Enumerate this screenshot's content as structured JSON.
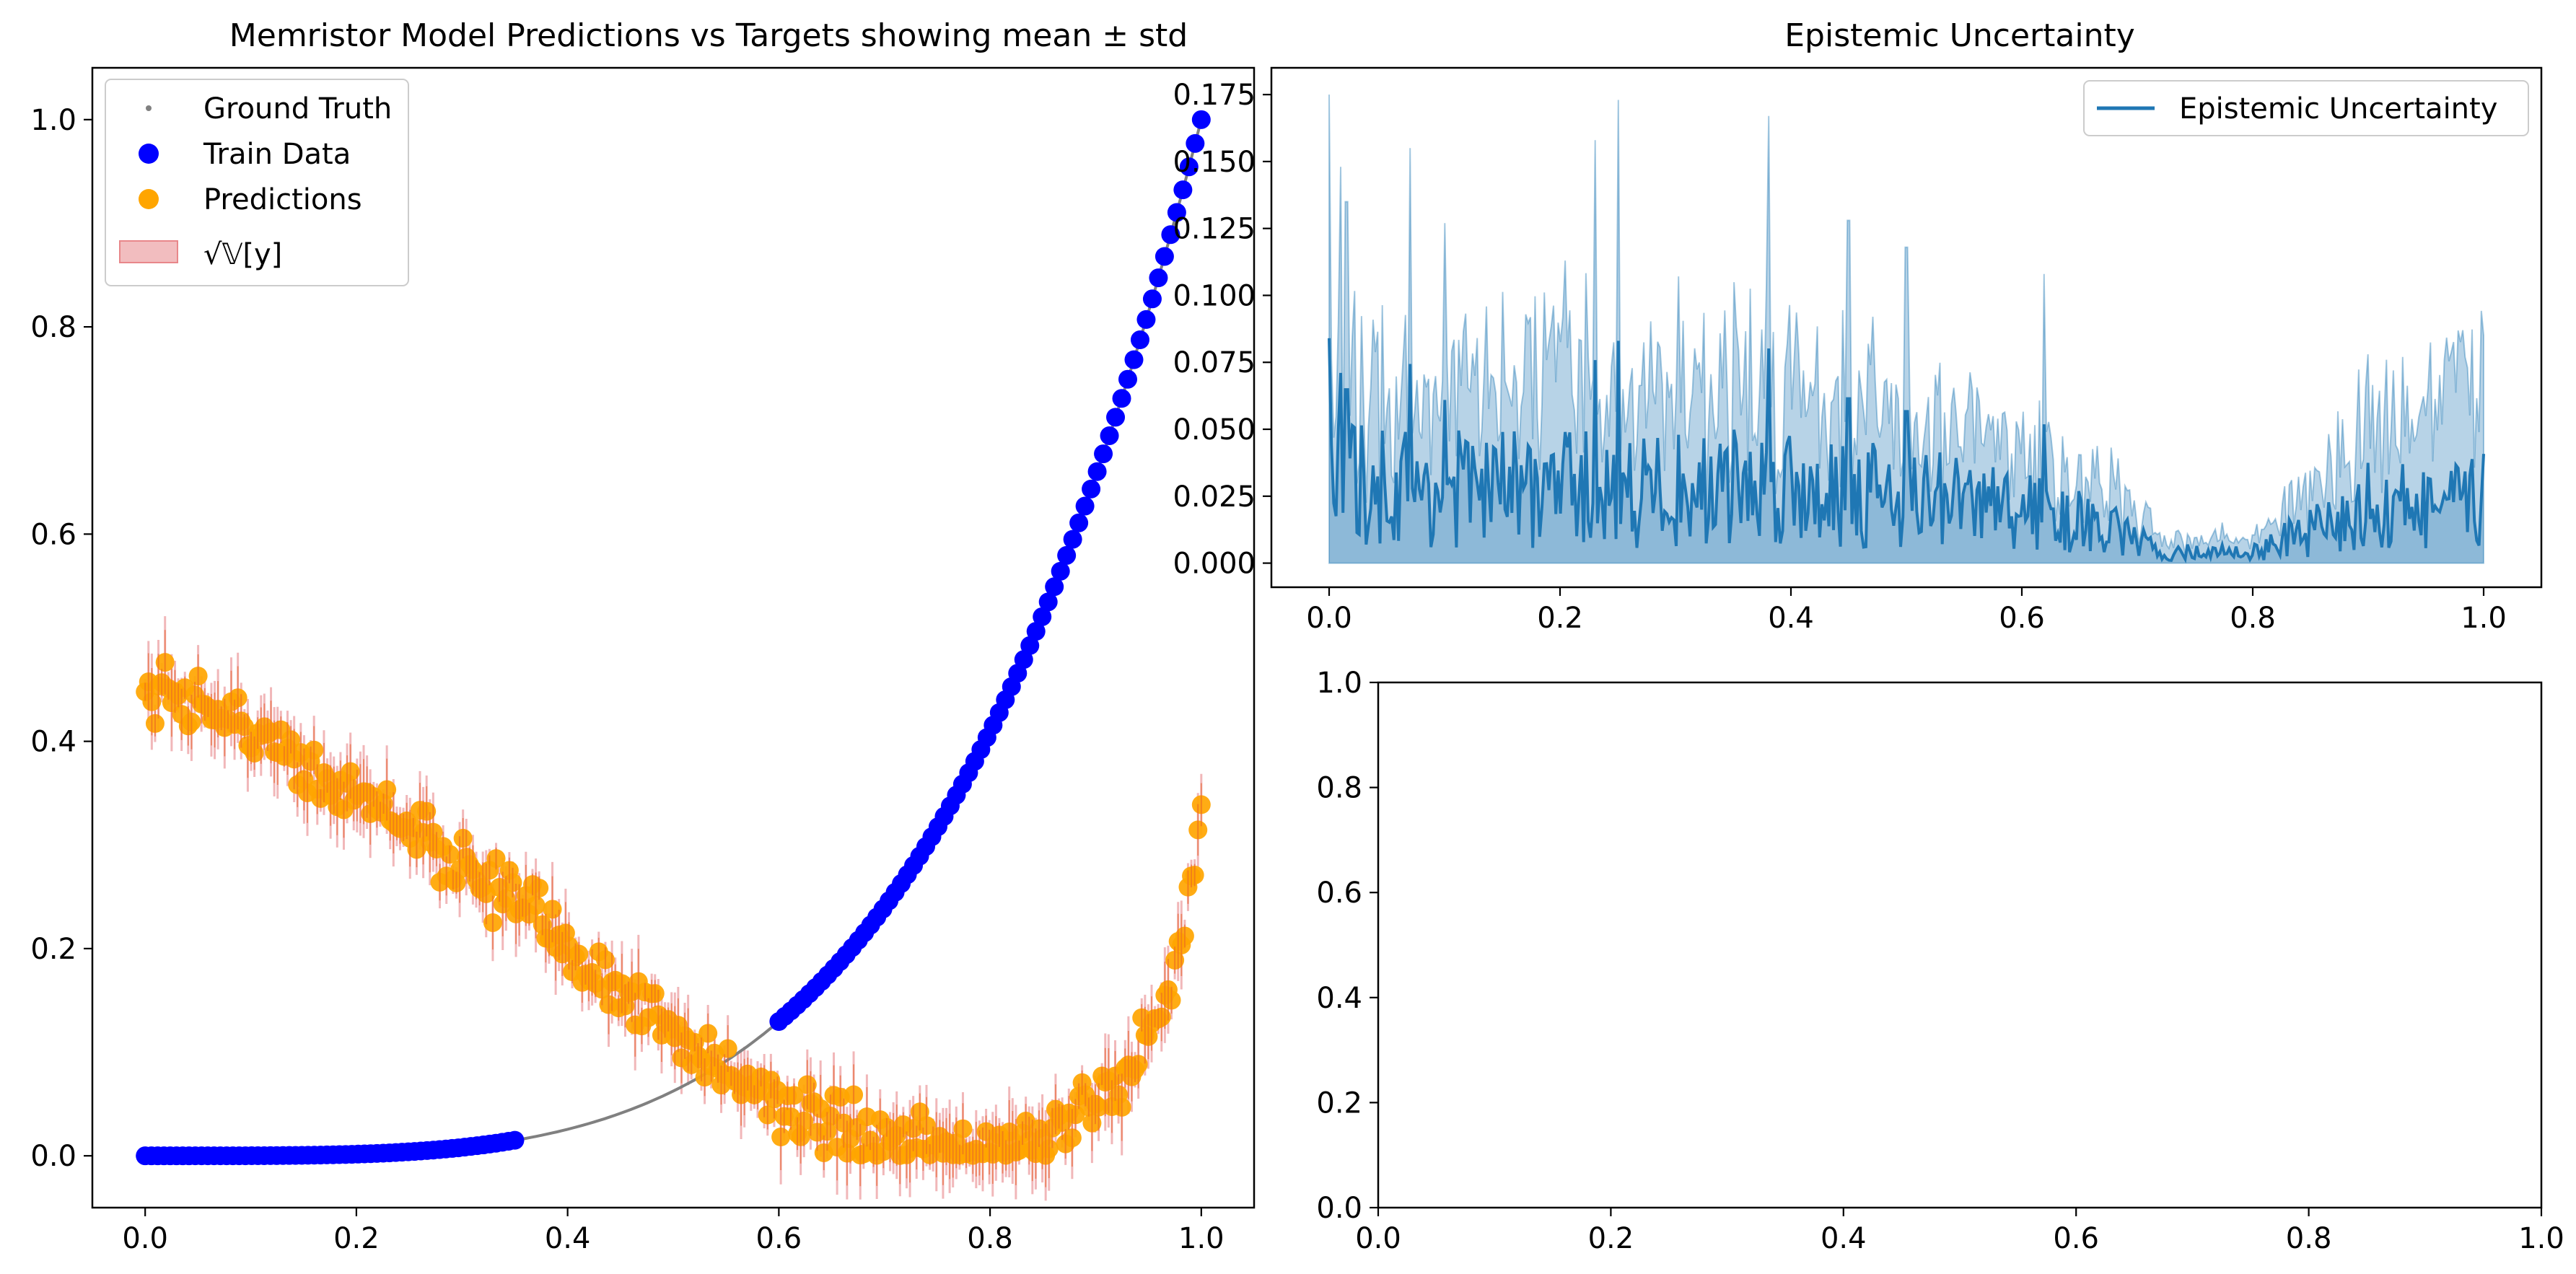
{
  "chart_data": [
    {
      "type": "scatter",
      "title": "Memristor Model Predictions vs Targets showing mean ± std",
      "xlabel": "",
      "ylabel": "",
      "xlim": [
        -0.05,
        1.05
      ],
      "ylim": [
        -0.05,
        1.05
      ],
      "xticks": [
        0.0,
        0.2,
        0.4,
        0.6,
        0.8,
        1.0
      ],
      "yticks": [
        0.0,
        0.2,
        0.4,
        0.6,
        0.8,
        1.0
      ],
      "xtick_labels": [
        "0.0",
        "0.2",
        "0.4",
        "0.6",
        "0.8",
        "1.0"
      ],
      "ytick_labels": [
        "0.0",
        "0.2",
        "0.4",
        "0.6",
        "0.8",
        "1.0"
      ],
      "grid": false,
      "legend_position": "top-left",
      "legend": [
        {
          "label": "Ground Truth",
          "marker": "small-dot",
          "color": "#808080"
        },
        {
          "label": "Train Data",
          "marker": "circle",
          "color": "#0000ff"
        },
        {
          "label": "Predictions",
          "marker": "circle",
          "color": "#ffa500"
        },
        {
          "label": "√𝕍[y]",
          "marker": "band",
          "color": "#e8878a"
        }
      ],
      "series": [
        {
          "name": "Ground Truth",
          "kind": "curve",
          "function": "y = x^4",
          "x_range": [
            0.0,
            1.0
          ],
          "color": "#808080"
        },
        {
          "name": "Train Data",
          "kind": "points",
          "function": "y = x^4",
          "segments": [
            [
              0.0,
              0.35
            ],
            [
              0.6,
              1.0
            ]
          ],
          "count_per_segment": [
            60,
            70
          ],
          "color": "#0000ff"
        },
        {
          "name": "Predictions",
          "kind": "points",
          "x_range": [
            0.0,
            1.0
          ],
          "mean_curve": {
            "x": [
              0.0,
              0.05,
              0.1,
              0.15,
              0.2,
              0.25,
              0.3,
              0.35,
              0.4,
              0.45,
              0.5,
              0.55,
              0.6,
              0.65,
              0.7,
              0.75,
              0.8,
              0.85,
              0.9,
              0.93,
              0.96,
              0.98,
              1.0
            ],
            "y": [
              0.45,
              0.44,
              0.41,
              0.38,
              0.35,
              0.32,
              0.28,
              0.24,
              0.2,
              0.16,
              0.12,
              0.08,
              0.05,
              0.025,
              0.01,
              0.005,
              0.005,
              0.02,
              0.05,
              0.08,
              0.13,
              0.2,
              0.33
            ]
          },
          "noise": 0.03,
          "color": "#ffa500"
        },
        {
          "name": "√𝕍[y]",
          "kind": "band",
          "note": "± std around predictions",
          "color": "#e8878a"
        }
      ]
    },
    {
      "type": "area",
      "title": "Epistemic Uncertainty",
      "xlim": [
        -0.05,
        1.05
      ],
      "ylim": [
        -0.009,
        0.185
      ],
      "xticks": [
        0.0,
        0.2,
        0.4,
        0.6,
        0.8,
        1.0
      ],
      "yticks": [
        0.0,
        0.025,
        0.05,
        0.075,
        0.1,
        0.125,
        0.15,
        0.175
      ],
      "xtick_labels": [
        "0.0",
        "0.2",
        "0.4",
        "0.6",
        "0.8",
        "1.0"
      ],
      "ytick_labels": [
        "0.000",
        "0.025",
        "0.050",
        "0.075",
        "0.100",
        "0.125",
        "0.150",
        "0.175"
      ],
      "grid": false,
      "legend_position": "top-right",
      "legend": [
        {
          "label": "Epistemic Uncertainty",
          "color": "#1f77b4"
        }
      ],
      "series": [
        {
          "name": "Epistemic Uncertainty",
          "envelope": {
            "x": [
              0.0,
              0.1,
              0.2,
              0.3,
              0.4,
              0.5,
              0.6,
              0.68,
              0.72,
              0.8,
              0.85,
              0.9,
              0.95,
              1.0
            ],
            "mean": [
              0.03,
              0.028,
              0.028,
              0.027,
              0.03,
              0.025,
              0.02,
              0.012,
              0.004,
              0.004,
              0.012,
              0.018,
              0.02,
              0.022
            ],
            "upper": [
              0.07,
              0.07,
              0.075,
              0.07,
              0.075,
              0.06,
              0.045,
              0.03,
              0.01,
              0.01,
              0.03,
              0.055,
              0.065,
              0.075
            ]
          },
          "peaks": [
            [
              0.0,
              0.175
            ],
            [
              0.01,
              0.148
            ],
            [
              0.015,
              0.135
            ],
            [
              0.07,
              0.155
            ],
            [
              0.1,
              0.127
            ],
            [
              0.25,
              0.173
            ],
            [
              0.23,
              0.158
            ],
            [
              0.38,
              0.167
            ],
            [
              0.45,
              0.128
            ],
            [
              0.5,
              0.118
            ],
            [
              0.62,
              0.108
            ],
            [
              0.9,
              0.078
            ],
            [
              0.93,
              0.077
            ],
            [
              1.0,
              0.085
            ]
          ],
          "color": "#1f77b4"
        }
      ]
    },
    {
      "type": "empty",
      "title": "",
      "xlim": [
        0.0,
        1.0
      ],
      "ylim": [
        0.0,
        1.0
      ],
      "xticks": [
        0.0,
        0.2,
        0.4,
        0.6,
        0.8,
        1.0
      ],
      "yticks": [
        0.0,
        0.2,
        0.4,
        0.6,
        0.8,
        1.0
      ],
      "xtick_labels": [
        "0.0",
        "0.2",
        "0.4",
        "0.6",
        "0.8",
        "1.0"
      ],
      "ytick_labels": [
        "0.0",
        "0.2",
        "0.4",
        "0.6",
        "0.8",
        "1.0"
      ]
    }
  ]
}
